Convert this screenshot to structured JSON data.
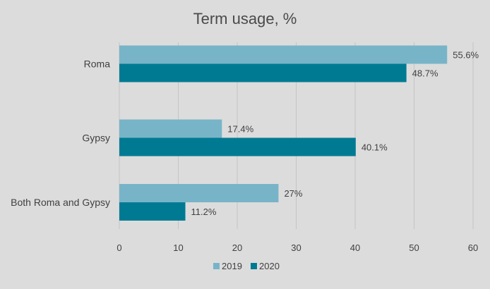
{
  "chart_data": {
    "type": "bar",
    "orientation": "horizontal",
    "title": "Term usage,  %",
    "categories": [
      "Roma",
      "Gypsy",
      "Both Roma and Gypsy"
    ],
    "series": [
      {
        "name": "2019",
        "values": [
          55.6,
          17.4,
          27
        ],
        "labels": [
          "55.6%",
          "17.4%",
          "27%"
        ],
        "color": "#78b4c8"
      },
      {
        "name": "2020",
        "values": [
          48.7,
          40.1,
          11.2
        ],
        "labels": [
          "48.7%",
          "40.1%",
          "11.2%"
        ],
        "color": "#007a93"
      }
    ],
    "xlim": [
      0,
      60
    ],
    "xticks": [
      0,
      10,
      20,
      30,
      40,
      50,
      60
    ],
    "grid": true,
    "legend_position": "bottom"
  },
  "colors": {
    "background": "#dcdcdc",
    "gridline": "#c4c4c4",
    "text": "#404040",
    "title": "#4a4a4a"
  }
}
